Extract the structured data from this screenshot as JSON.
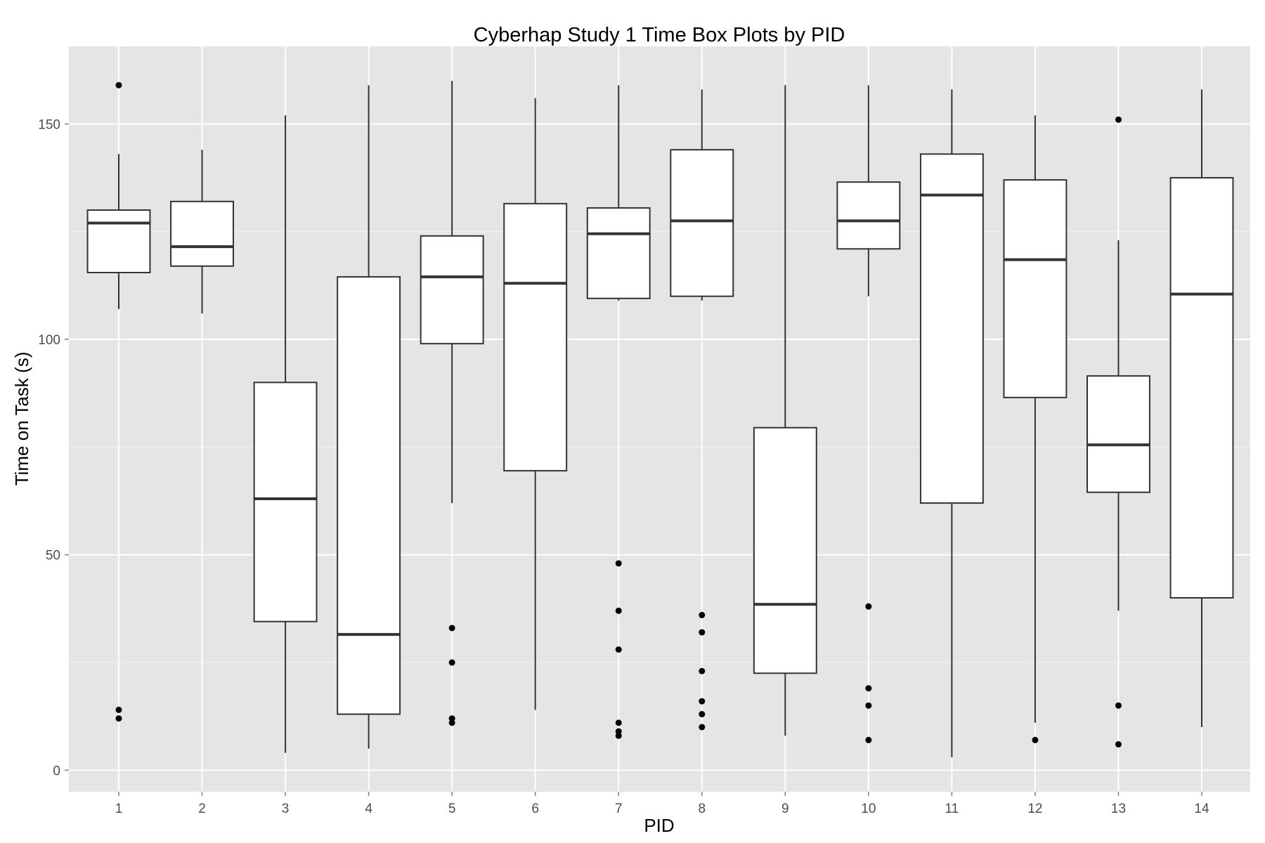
{
  "chart_data": {
    "type": "box",
    "title": "Cyberhap Study 1 Time Box Plots by PID",
    "xlabel": "PID",
    "ylabel": "Time on Task (s)",
    "categories": [
      "1",
      "2",
      "3",
      "4",
      "5",
      "6",
      "7",
      "8",
      "9",
      "10",
      "11",
      "12",
      "13",
      "14"
    ],
    "y_ticks": [
      "0",
      "50",
      "100",
      "150"
    ],
    "ylim": [
      -5,
      168
    ],
    "grid": true,
    "colors": {
      "panel": "#e5e5e5",
      "grid_major": "#ffffff",
      "box_fill": "#ffffff",
      "stroke": "#333333",
      "point": "#000000"
    },
    "boxes": [
      {
        "pid": "1",
        "whisker_low": 107,
        "q1": 115.5,
        "median": 127,
        "q3": 130,
        "whisker_high": 143,
        "outliers": [
          159,
          14,
          12
        ]
      },
      {
        "pid": "2",
        "whisker_low": 106,
        "q1": 117,
        "median": 121.5,
        "q3": 132,
        "whisker_high": 144,
        "outliers": []
      },
      {
        "pid": "3",
        "whisker_low": 4,
        "q1": 34.5,
        "median": 63,
        "q3": 90,
        "whisker_high": 152,
        "outliers": []
      },
      {
        "pid": "4",
        "whisker_low": 5,
        "q1": 13,
        "median": 31.5,
        "q3": 114.5,
        "whisker_high": 159,
        "outliers": []
      },
      {
        "pid": "5",
        "whisker_low": 62,
        "q1": 99,
        "median": 114.5,
        "q3": 124,
        "whisker_high": 160,
        "outliers": [
          33,
          25,
          12,
          11
        ]
      },
      {
        "pid": "6",
        "whisker_low": 14,
        "q1": 69.5,
        "median": 113,
        "q3": 131.5,
        "whisker_high": 156,
        "outliers": []
      },
      {
        "pid": "7",
        "whisker_low": 109,
        "q1": 109.5,
        "median": 124.5,
        "q3": 130.5,
        "whisker_high": 159,
        "outliers": [
          48,
          37,
          28,
          11,
          9,
          8
        ]
      },
      {
        "pid": "8",
        "whisker_low": 109,
        "q1": 110,
        "median": 127.5,
        "q3": 144,
        "whisker_high": 158,
        "outliers": [
          36,
          32,
          23,
          16,
          13,
          10
        ]
      },
      {
        "pid": "9",
        "whisker_low": 8,
        "q1": 22.5,
        "median": 38.5,
        "q3": 79.5,
        "whisker_high": 159,
        "outliers": []
      },
      {
        "pid": "10",
        "whisker_low": 110,
        "q1": 121,
        "median": 127.5,
        "q3": 136.5,
        "whisker_high": 159,
        "outliers": [
          38,
          19,
          15,
          7
        ]
      },
      {
        "pid": "11",
        "whisker_low": 3,
        "q1": 62,
        "median": 133.5,
        "q3": 143,
        "whisker_high": 158,
        "outliers": []
      },
      {
        "pid": "12",
        "whisker_low": 11,
        "q1": 86.5,
        "median": 118.5,
        "q3": 137,
        "whisker_high": 152,
        "outliers": [
          7
        ]
      },
      {
        "pid": "13",
        "whisker_low": 37,
        "q1": 64.5,
        "median": 75.5,
        "q3": 91.5,
        "whisker_high": 123,
        "outliers": [
          151,
          15,
          6
        ]
      },
      {
        "pid": "14",
        "whisker_low": 10,
        "q1": 40,
        "median": 110.5,
        "q3": 137.5,
        "whisker_high": 158,
        "outliers": []
      }
    ]
  }
}
